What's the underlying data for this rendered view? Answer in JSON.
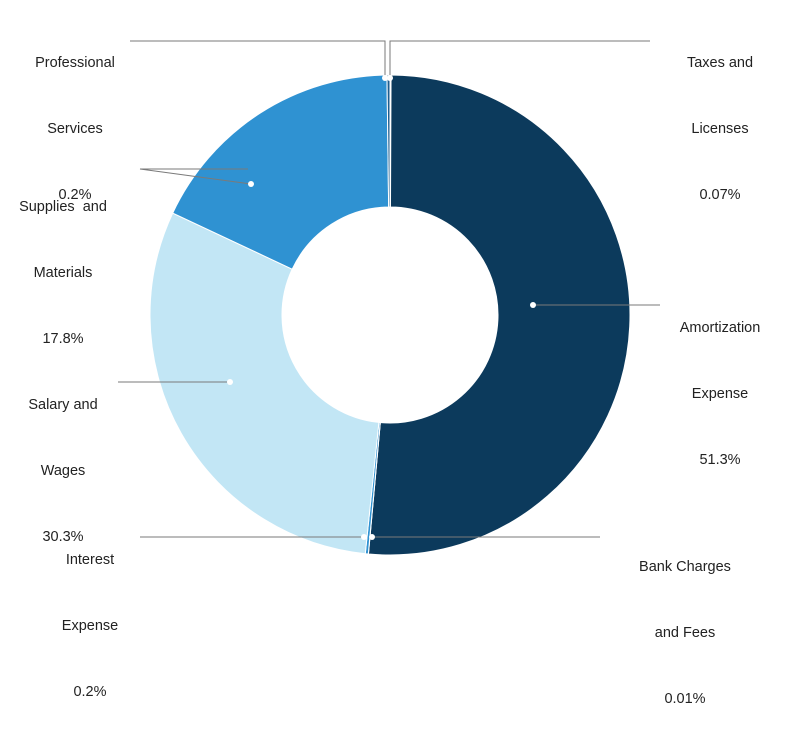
{
  "chart_data": {
    "type": "pie",
    "donut": true,
    "title": "",
    "legend": "none",
    "slices": [
      {
        "label_lines": [
          "Taxes and",
          "Licenses"
        ],
        "value": 0.07,
        "value_text": "0.07%",
        "color": "#0c3c5e"
      },
      {
        "label_lines": [
          "Amortization",
          "Expense"
        ],
        "value": 51.3,
        "value_text": "51.3%",
        "color": "#0c3a5c"
      },
      {
        "label_lines": [
          "Bank Charges",
          "and Fees"
        ],
        "value": 0.01,
        "value_text": "0.01%",
        "color": "#0c3c5e"
      },
      {
        "label_lines": [
          "Interest",
          "Expense"
        ],
        "value": 0.2,
        "value_text": "0.2%",
        "color": "#2f92d2"
      },
      {
        "label_lines": [
          "Salary and",
          "Wages"
        ],
        "value": 30.3,
        "value_text": "30.3%",
        "color": "#c2e6f5"
      },
      {
        "label_lines": [
          "Supplies  and",
          "Materials"
        ],
        "value": 17.8,
        "value_text": "17.8%",
        "color": "#2f92d2"
      },
      {
        "label_lines": [
          "Professional",
          "Services"
        ],
        "value": 0.2,
        "value_text": "0.2%",
        "color": "#1d5e8f"
      }
    ]
  }
}
